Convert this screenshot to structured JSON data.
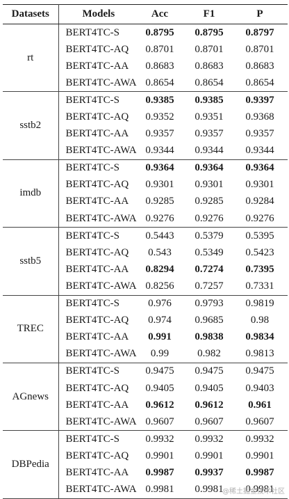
{
  "headers": {
    "dataset": "Datasets",
    "model": "Models",
    "acc": "Acc",
    "f1": "F1",
    "p": "P"
  },
  "groups": [
    {
      "dataset": "rt",
      "rows": [
        {
          "model": "BERT4TC-S",
          "acc": "0.8795",
          "f1": "0.8795",
          "p": "0.8797",
          "bold": [
            true,
            true,
            true
          ]
        },
        {
          "model": "BERT4TC-AQ",
          "acc": "0.8701",
          "f1": "0.8701",
          "p": "0.8701",
          "bold": [
            false,
            false,
            false
          ]
        },
        {
          "model": "BERT4TC-AA",
          "acc": "0.8683",
          "f1": "0.8683",
          "p": "0.8683",
          "bold": [
            false,
            false,
            false
          ]
        },
        {
          "model": "BERT4TC-AWA",
          "acc": "0.8654",
          "f1": "0.8654",
          "p": "0.8654",
          "bold": [
            false,
            false,
            false
          ]
        }
      ]
    },
    {
      "dataset": "sstb2",
      "rows": [
        {
          "model": "BERT4TC-S",
          "acc": "0.9385",
          "f1": "0.9385",
          "p": "0.9397",
          "bold": [
            true,
            true,
            true
          ]
        },
        {
          "model": "BERT4TC-AQ",
          "acc": "0.9352",
          "f1": "0.9351",
          "p": "0.9368",
          "bold": [
            false,
            false,
            false
          ]
        },
        {
          "model": "BERT4TC-AA",
          "acc": "0.9357",
          "f1": "0.9357",
          "p": "0.9357",
          "bold": [
            false,
            false,
            false
          ]
        },
        {
          "model": "BERT4TC-AWA",
          "acc": "0.9344",
          "f1": "0.9344",
          "p": "0.9344",
          "bold": [
            false,
            false,
            false
          ]
        }
      ]
    },
    {
      "dataset": "imdb",
      "rows": [
        {
          "model": "BERT4TC-S",
          "acc": "0.9364",
          "f1": "0.9364",
          "p": "0.9364",
          "bold": [
            true,
            true,
            true
          ]
        },
        {
          "model": "BERT4TC-AQ",
          "acc": "0.9301",
          "f1": "0.9301",
          "p": "0.9301",
          "bold": [
            false,
            false,
            false
          ]
        },
        {
          "model": "BERT4TC-AA",
          "acc": "0.9285",
          "f1": "0.9285",
          "p": "0.9284",
          "bold": [
            false,
            false,
            false
          ]
        },
        {
          "model": "BERT4TC-AWA",
          "acc": "0.9276",
          "f1": "0.9276",
          "p": "0.9276",
          "bold": [
            false,
            false,
            false
          ]
        }
      ]
    },
    {
      "dataset": "sstb5",
      "rows": [
        {
          "model": "BERT4TC-S",
          "acc": "0.5443",
          "f1": "0.5379",
          "p": "0.5395",
          "bold": [
            false,
            false,
            false
          ]
        },
        {
          "model": "BERT4TC-AQ",
          "acc": "0.543",
          "f1": "0.5349",
          "p": "0.5423",
          "bold": [
            false,
            false,
            false
          ]
        },
        {
          "model": "BERT4TC-AA",
          "acc": "0.8294",
          "f1": "0.7274",
          "p": "0.7395",
          "bold": [
            true,
            true,
            true
          ]
        },
        {
          "model": "BERT4TC-AWA",
          "acc": "0.8256",
          "f1": "0.7257",
          "p": "0.7331",
          "bold": [
            false,
            false,
            false
          ]
        }
      ]
    },
    {
      "dataset": "TREC",
      "rows": [
        {
          "model": "BERT4TC-S",
          "acc": "0.976",
          "f1": "0.9793",
          "p": "0.9819",
          "bold": [
            false,
            false,
            false
          ]
        },
        {
          "model": "BERT4TC-AQ",
          "acc": "0.974",
          "f1": "0.9685",
          "p": "0.98",
          "bold": [
            false,
            false,
            false
          ]
        },
        {
          "model": "BERT4TC-AA",
          "acc": "0.991",
          "f1": "0.9838",
          "p": "0.9834",
          "bold": [
            true,
            true,
            true
          ]
        },
        {
          "model": "BERT4TC-AWA",
          "acc": "0.99",
          "f1": "0.982",
          "p": "0.9813",
          "bold": [
            false,
            false,
            false
          ]
        }
      ]
    },
    {
      "dataset": "AGnews",
      "rows": [
        {
          "model": "BERT4TC-S",
          "acc": "0.9475",
          "f1": "0.9475",
          "p": "0.9475",
          "bold": [
            false,
            false,
            false
          ]
        },
        {
          "model": "BERT4TC-AQ",
          "acc": "0.9405",
          "f1": "0.9405",
          "p": "0.9403",
          "bold": [
            false,
            false,
            false
          ]
        },
        {
          "model": "BERT4TC-AA",
          "acc": "0.9612",
          "f1": "0.9612",
          "p": "0.961",
          "bold": [
            true,
            true,
            true
          ]
        },
        {
          "model": "BERT4TC-AWA",
          "acc": "0.9607",
          "f1": "0.9607",
          "p": "0.9607",
          "bold": [
            false,
            false,
            false
          ]
        }
      ]
    },
    {
      "dataset": "DBPedia",
      "rows": [
        {
          "model": "BERT4TC-S",
          "acc": "0.9932",
          "f1": "0.9932",
          "p": "0.9932",
          "bold": [
            false,
            false,
            false
          ]
        },
        {
          "model": "BERT4TC-AQ",
          "acc": "0.9901",
          "f1": "0.9901",
          "p": "0.9901",
          "bold": [
            false,
            false,
            false
          ]
        },
        {
          "model": "BERT4TC-AA",
          "acc": "0.9987",
          "f1": "0.9937",
          "p": "0.9987",
          "bold": [
            true,
            true,
            true
          ]
        },
        {
          "model": "BERT4TC-AWA",
          "acc": "0.9981",
          "f1": "0.9981",
          "p": "0.9981",
          "bold": [
            false,
            false,
            false
          ]
        }
      ]
    }
  ],
  "watermark": "@稀土掘金技术社区"
}
